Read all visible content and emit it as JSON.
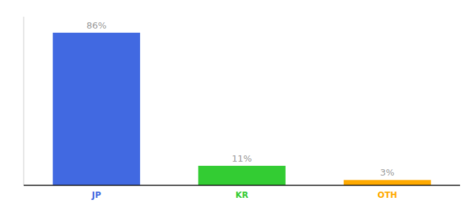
{
  "chart_data": {
    "type": "bar",
    "categories": [
      "JP",
      "KR",
      "OTH"
    ],
    "values": [
      86,
      11,
      3
    ],
    "value_labels": [
      "86%",
      "11%",
      "3%"
    ],
    "colors": [
      "#4169e1",
      "#33cc33",
      "#ffaa00"
    ],
    "ylim": [
      0,
      95
    ],
    "data_labels": true,
    "tick_labels": "x",
    "grid": false
  }
}
